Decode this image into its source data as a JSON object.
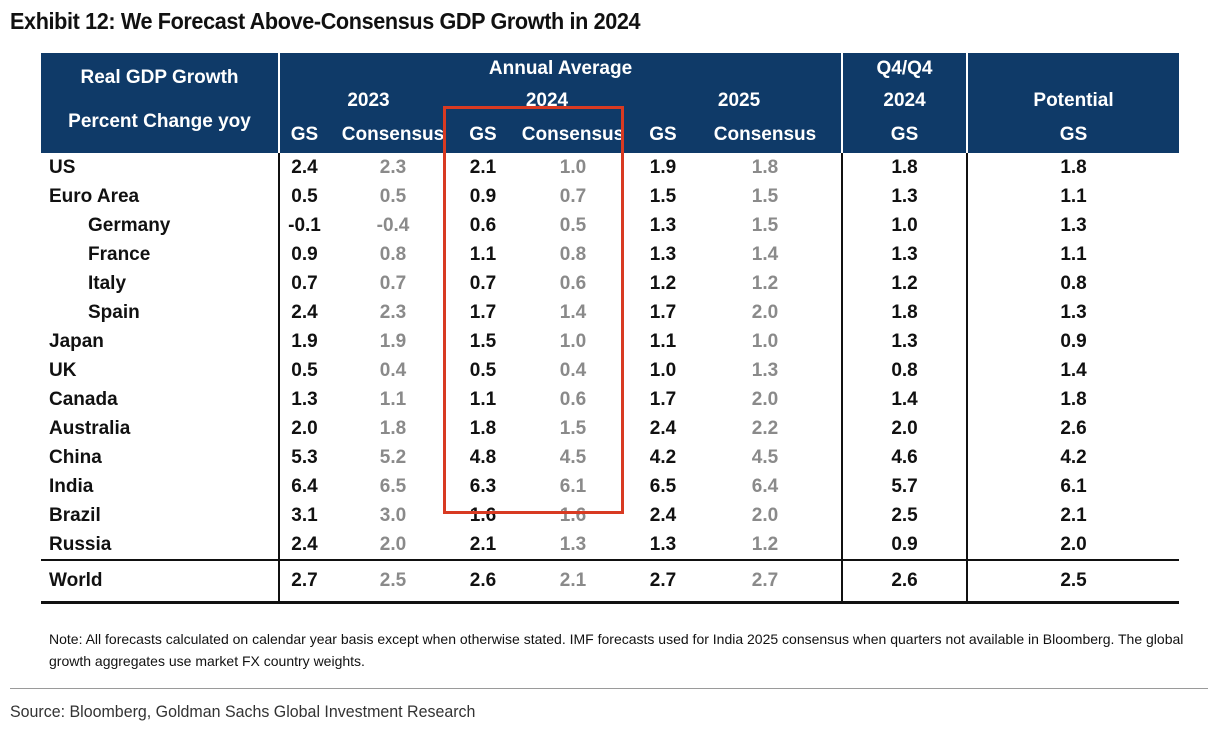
{
  "title": "Exhibit 12: We Forecast Above-Consensus GDP Growth in 2024",
  "header": {
    "row_label_1": "Real GDP Growth",
    "row_label_2": "Percent Change yoy",
    "annual_average": "Annual Average",
    "q4q4": "Q4/Q4",
    "year_2023": "2023",
    "year_2024": "2024",
    "year_2025": "2025",
    "q4_year": "2024",
    "potential": "Potential",
    "gs": "GS",
    "consensus": "Consensus"
  },
  "rows": [
    {
      "country": "US",
      "indent": false,
      "v": [
        "2.4",
        "2.3",
        "2.1",
        "1.0",
        "1.9",
        "1.8",
        "1.8",
        "1.8"
      ]
    },
    {
      "country": "Euro Area",
      "indent": false,
      "v": [
        "0.5",
        "0.5",
        "0.9",
        "0.7",
        "1.5",
        "1.5",
        "1.3",
        "1.1"
      ]
    },
    {
      "country": "Germany",
      "indent": true,
      "v": [
        "-0.1",
        "-0.4",
        "0.6",
        "0.5",
        "1.3",
        "1.5",
        "1.0",
        "1.3"
      ]
    },
    {
      "country": "France",
      "indent": true,
      "v": [
        "0.9",
        "0.8",
        "1.1",
        "0.8",
        "1.3",
        "1.4",
        "1.3",
        "1.1"
      ]
    },
    {
      "country": "Italy",
      "indent": true,
      "v": [
        "0.7",
        "0.7",
        "0.7",
        "0.6",
        "1.2",
        "1.2",
        "1.2",
        "0.8"
      ]
    },
    {
      "country": "Spain",
      "indent": true,
      "v": [
        "2.4",
        "2.3",
        "1.7",
        "1.4",
        "1.7",
        "2.0",
        "1.8",
        "1.3"
      ]
    },
    {
      "country": "Japan",
      "indent": false,
      "v": [
        "1.9",
        "1.9",
        "1.5",
        "1.0",
        "1.1",
        "1.0",
        "1.3",
        "0.9"
      ]
    },
    {
      "country": "UK",
      "indent": false,
      "v": [
        "0.5",
        "0.4",
        "0.5",
        "0.4",
        "1.0",
        "1.3",
        "0.8",
        "1.4"
      ]
    },
    {
      "country": "Canada",
      "indent": false,
      "v": [
        "1.3",
        "1.1",
        "1.1",
        "0.6",
        "1.7",
        "2.0",
        "1.4",
        "1.8"
      ]
    },
    {
      "country": "Australia",
      "indent": false,
      "v": [
        "2.0",
        "1.8",
        "1.8",
        "1.5",
        "2.4",
        "2.2",
        "2.0",
        "2.6"
      ]
    },
    {
      "country": "China",
      "indent": false,
      "v": [
        "5.3",
        "5.2",
        "4.8",
        "4.5",
        "4.2",
        "4.5",
        "4.6",
        "4.2"
      ]
    },
    {
      "country": "India",
      "indent": false,
      "v": [
        "6.4",
        "6.5",
        "6.3",
        "6.1",
        "6.5",
        "6.4",
        "5.7",
        "6.1"
      ]
    },
    {
      "country": "Brazil",
      "indent": false,
      "v": [
        "3.1",
        "3.0",
        "1.6",
        "1.6",
        "2.4",
        "2.0",
        "2.5",
        "2.1"
      ]
    },
    {
      "country": "Russia",
      "indent": false,
      "v": [
        "2.4",
        "2.0",
        "2.1",
        "1.3",
        "1.3",
        "1.2",
        "0.9",
        "2.0"
      ]
    }
  ],
  "world": {
    "country": "World",
    "v": [
      "2.7",
      "2.5",
      "2.6",
      "2.1",
      "2.7",
      "2.7",
      "2.6",
      "2.5"
    ]
  },
  "note": "Note: All forecasts calculated on calendar year basis except when otherwise stated. IMF forecasts used for India 2025 consensus when quarters not available in Bloomberg. The global growth aggregates use market FX country weights.",
  "source": "Source: Bloomberg, Goldman Sachs Global Investment Research",
  "colors": {
    "header_bg": "#0f3a68",
    "header_text": "#ffffff",
    "consensus_text": "#8a8a8a",
    "highlight_border": "#d83a22"
  }
}
